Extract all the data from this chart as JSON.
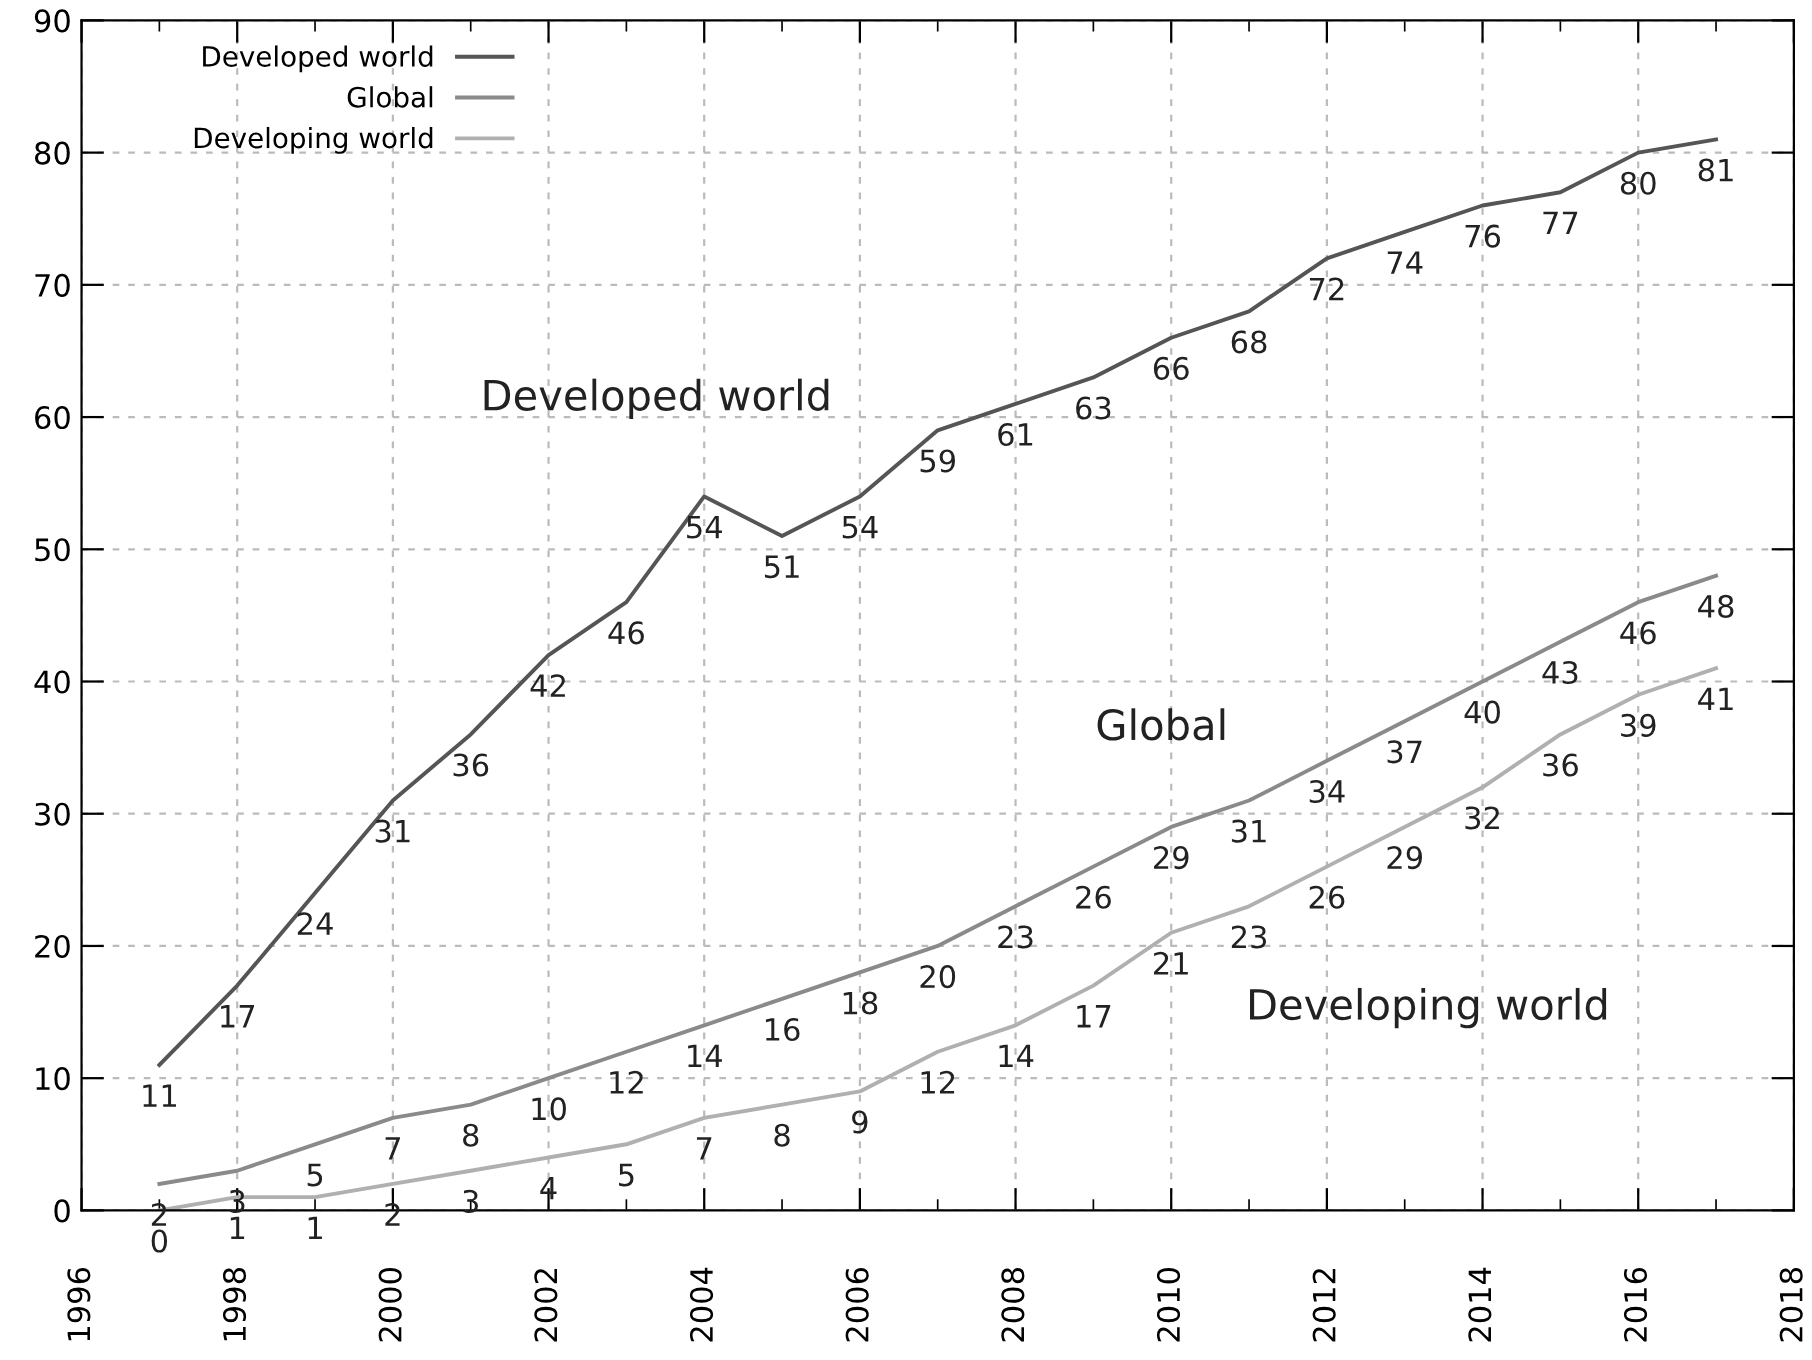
{
  "chart_data": {
    "type": "line",
    "x": [
      1997,
      1998,
      1999,
      2000,
      2001,
      2002,
      2003,
      2004,
      2005,
      2006,
      2007,
      2008,
      2009,
      2010,
      2011,
      2012,
      2013,
      2014,
      2015,
      2016,
      2017
    ],
    "series": [
      {
        "name": "Developed world",
        "color": "#555555",
        "values": [
          11,
          17,
          24,
          31,
          36,
          42,
          46,
          54,
          51,
          54,
          59,
          61,
          63,
          66,
          68,
          72,
          74,
          76,
          77,
          80,
          81
        ]
      },
      {
        "name": "Global",
        "color": "#8a8a8a",
        "values": [
          2,
          3,
          5,
          7,
          8,
          10,
          12,
          14,
          16,
          18,
          20,
          23,
          26,
          29,
          31,
          34,
          37,
          40,
          43,
          46,
          48
        ]
      },
      {
        "name": "Developing world",
        "color": "#b0b0b0",
        "values": [
          0,
          1,
          1,
          2,
          3,
          4,
          5,
          7,
          8,
          9,
          12,
          14,
          17,
          21,
          23,
          26,
          29,
          32,
          36,
          39,
          41
        ]
      }
    ],
    "annotations": [
      "Developed world",
      "Global",
      "Developing world"
    ],
    "xlim": [
      1996,
      2018
    ],
    "xticks": [
      1996,
      1998,
      2000,
      2002,
      2004,
      2006,
      2008,
      2010,
      2012,
      2014,
      2016,
      2018
    ],
    "ylim": [
      0,
      90
    ],
    "yticks": [
      0,
      10,
      20,
      30,
      40,
      50,
      60,
      70,
      80,
      90
    ],
    "grid": true,
    "legend": "top left",
    "data_labels": true,
    "marker": "none",
    "line_style": "solid"
  }
}
